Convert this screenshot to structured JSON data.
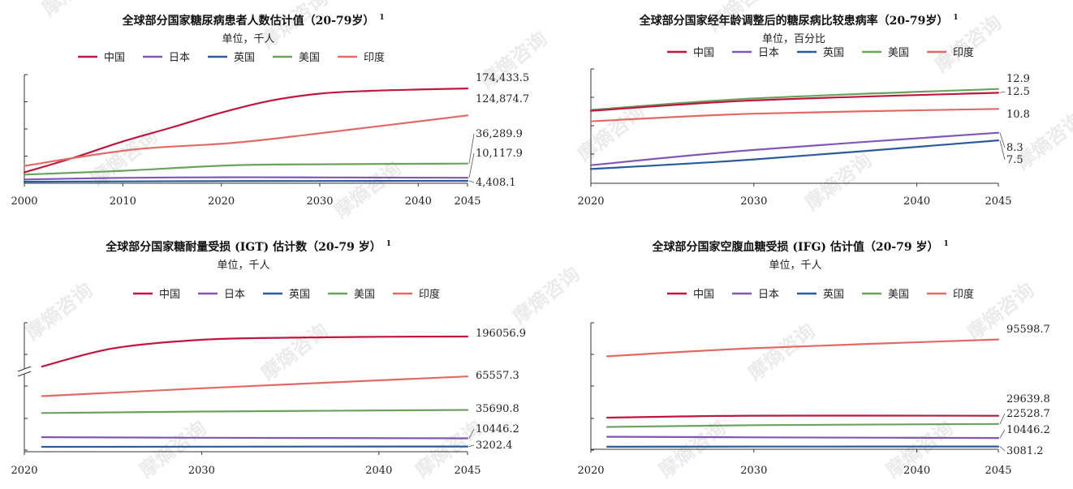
{
  "colors": {
    "中国": "#c0163f",
    "日本": "#7e58b4",
    "英国": "#2a5b9c",
    "美国": "#6aa35c",
    "印度": "#e26a64"
  },
  "watermark": "摩熵咨询",
  "chart_data": [
    {
      "type": "line",
      "title": "全球部分国家糖尿病患者人数估计值（20-79岁）",
      "footnote": "1",
      "unit": "单位，千人",
      "legend": [
        "中国",
        "日本",
        "英国",
        "美国",
        "印度"
      ],
      "x_ticks": [
        2000,
        2010,
        2020,
        2030,
        2040,
        2045
      ],
      "xlim": [
        2000,
        2045
      ],
      "ylim": [
        0,
        200000
      ],
      "series": [
        {
          "name": "中国",
          "x": [
            2000,
            2005,
            2010,
            2015,
            2020,
            2025,
            2030,
            2035,
            2040,
            2045
          ],
          "values": [
            20000,
            47000,
            77000,
            103000,
            130000,
            152000,
            165000,
            170000,
            172500,
            174433.5
          ],
          "label": "174,433.5"
        },
        {
          "name": "印度",
          "x": [
            2000,
            2011,
            2021,
            2030,
            2045
          ],
          "values": [
            32000,
            62000,
            74000,
            92000,
            124874.7
          ],
          "label": "124,874.7"
        },
        {
          "name": "美国",
          "x": [
            2000,
            2010,
            2021,
            2030,
            2045
          ],
          "values": [
            16000,
            23000,
            33000,
            35000,
            36289.9
          ],
          "label": "36,289.9"
        },
        {
          "name": "日本",
          "x": [
            2000,
            2010,
            2020,
            2030,
            2045
          ],
          "values": [
            7000,
            10000,
            11000,
            10800,
            10117.9
          ],
          "label": "10,117.9"
        },
        {
          "name": "英国",
          "x": [
            2000,
            2010,
            2020,
            2030,
            2045
          ],
          "values": [
            2800,
            3500,
            4000,
            4200,
            4408.1
          ],
          "label": "4,408.1"
        }
      ]
    },
    {
      "type": "line",
      "title": "全球部分国家经年龄调整后的糖尿病比较患病率（20-79岁）",
      "footnote": "1",
      "unit": "单位，百分比",
      "legend": [
        "中国",
        "日本",
        "英国",
        "美国",
        "印度"
      ],
      "x_ticks": [
        2020,
        2030,
        2040,
        2045
      ],
      "xlim": [
        2020,
        2045
      ],
      "ylim": [
        3,
        15
      ],
      "series": [
        {
          "name": "美国",
          "x": [
            2020,
            2030,
            2045
          ],
          "values": [
            10.7,
            11.9,
            12.9
          ],
          "label": "12.9"
        },
        {
          "name": "中国",
          "x": [
            2020,
            2030,
            2045
          ],
          "values": [
            10.6,
            11.7,
            12.5
          ],
          "label": "12.5"
        },
        {
          "name": "印度",
          "x": [
            2020,
            2030,
            2045
          ],
          "values": [
            9.5,
            10.3,
            10.8
          ],
          "label": "10.8"
        },
        {
          "name": "日本",
          "x": [
            2020,
            2030,
            2045
          ],
          "values": [
            4.9,
            6.5,
            8.3
          ],
          "label": "8.3"
        },
        {
          "name": "英国",
          "x": [
            2020,
            2030,
            2045
          ],
          "values": [
            4.5,
            5.5,
            7.5
          ],
          "label": "7.5"
        }
      ]
    },
    {
      "type": "line",
      "title": "全球部分国家糖耐量受损 (IGT) 估计数（20-79 岁）",
      "footnote": "1",
      "unit": "单位，千人",
      "legend": [
        "中国",
        "日本",
        "英国",
        "美国",
        "印度"
      ],
      "x_ticks": [
        2020,
        2030,
        2040,
        2045
      ],
      "xlim": [
        2020,
        2045
      ],
      "axis_break": true,
      "series": [
        {
          "name": "中国",
          "x": [
            2021,
            2025,
            2030,
            2035,
            2040,
            2045
          ],
          "values": [
            168000,
            185000,
            193000,
            195000,
            195800,
            196056.9
          ],
          "label": "196056.9"
        },
        {
          "name": "印度",
          "x": [
            2021,
            2030,
            2045
          ],
          "values": [
            48000,
            55000,
            65557.3
          ],
          "label": "65557.3"
        },
        {
          "name": "美国",
          "x": [
            2021,
            2030,
            2045
          ],
          "values": [
            33000,
            34300,
            35690.8
          ],
          "label": "35690.8"
        },
        {
          "name": "日本",
          "x": [
            2021,
            2030,
            2045
          ],
          "values": [
            11500,
            11000,
            10446.2
          ],
          "label": "10446.2"
        },
        {
          "name": "英国",
          "x": [
            2021,
            2030,
            2045
          ],
          "values": [
            2900,
            3050,
            3202.4
          ],
          "label": "3202.4"
        }
      ]
    },
    {
      "type": "line",
      "title": "全球部分国家空腹血糖受损 (IFG) 估计值（20-79 岁）",
      "footnote": "1",
      "unit": "单位，千人",
      "legend": [
        "中国",
        "日本",
        "英国",
        "美国",
        "印度"
      ],
      "x_ticks": [
        2020,
        2030,
        2040,
        2045
      ],
      "xlim": [
        2020,
        2045
      ],
      "ylim": [
        0,
        110000
      ],
      "series": [
        {
          "name": "印度",
          "x": [
            2021,
            2030,
            2045
          ],
          "values": [
            81000,
            88000,
            95598.7
          ],
          "label": "95598.7"
        },
        {
          "name": "中国",
          "x": [
            2021,
            2030,
            2045
          ],
          "values": [
            28000,
            29700,
            29639.8
          ],
          "label": "29639.8"
        },
        {
          "name": "美国",
          "x": [
            2021,
            2030,
            2045
          ],
          "values": [
            20000,
            21500,
            22528.7
          ],
          "label": "22528.7"
        },
        {
          "name": "日本",
          "x": [
            2021,
            2030,
            2045
          ],
          "values": [
            11500,
            11000,
            10446.2
          ],
          "label": "10446.2"
        },
        {
          "name": "英国",
          "x": [
            2021,
            2030,
            2045
          ],
          "values": [
            2900,
            3000,
            3081.2
          ],
          "label": "3081.2"
        }
      ]
    }
  ]
}
